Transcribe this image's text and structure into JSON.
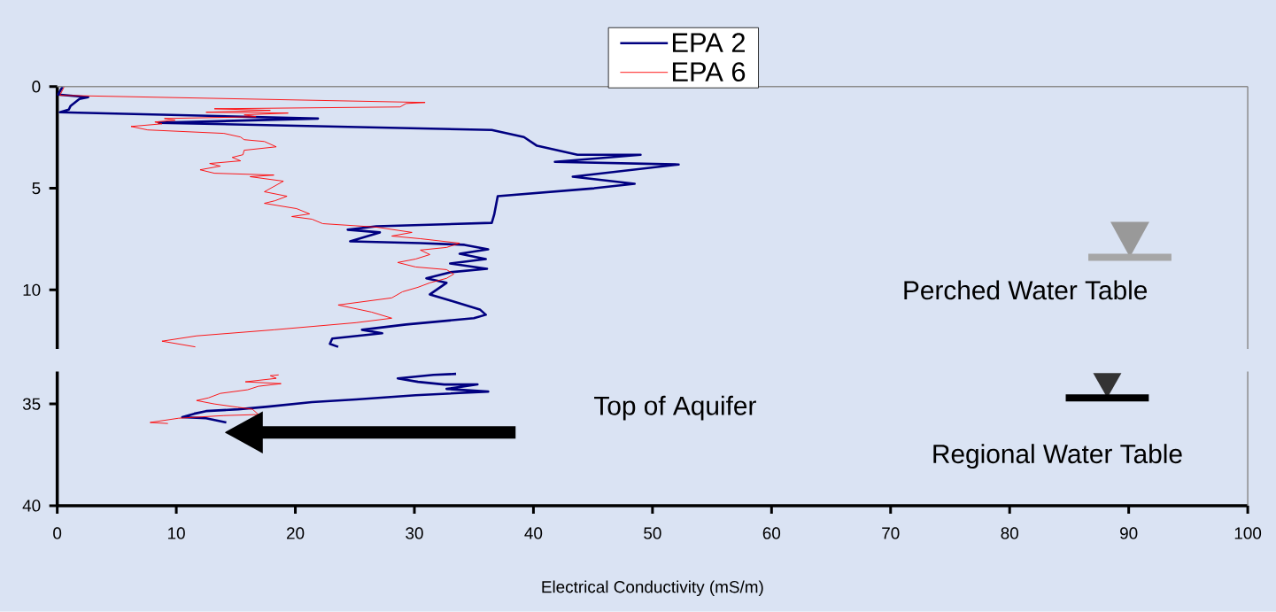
{
  "chart_data": [
    {
      "type": "line",
      "xlim": [
        0,
        100
      ],
      "xticks": [
        0,
        10,
        20,
        30,
        40,
        50,
        60,
        70,
        80,
        90,
        100
      ],
      "ylim": [
        12.9,
        0
      ],
      "yticks": [
        0,
        5,
        10
      ],
      "tick_labels": "y",
      "legend": "top",
      "marker": "none",
      "line_style": "solid",
      "grid": false,
      "series": [
        {
          "name": "EPA 2",
          "color": "#000080",
          "x": [
            0.45,
            0.07,
            2.6,
            1.86,
            1.11,
            0.97,
            0.22,
            21.9,
            8.54,
            36.5,
            39.2,
            40.3,
            43.7,
            49.0,
            41.8,
            52.2,
            43.3,
            48.5,
            45.1,
            37.0,
            36.7,
            36.5,
            26.8,
            24.4,
            27.1,
            24.6,
            30.5,
            34.2,
            36.2,
            33.8,
            36.0,
            33.0,
            36.1,
            33.0,
            31.0,
            32.7,
            31.3,
            33.0,
            35.5,
            36.0,
            35.0,
            29.3,
            25.6,
            27.3,
            23.1,
            22.9,
            23.6
          ],
          "values": [
            0,
            0.39,
            0.52,
            0.61,
            0.96,
            1.13,
            1.26,
            1.57,
            1.78,
            2.13,
            2.48,
            2.91,
            3.35,
            3.35,
            3.7,
            3.83,
            4.43,
            4.78,
            5.0,
            5.39,
            6.3,
            6.7,
            6.87,
            7.04,
            7.17,
            7.61,
            7.7,
            7.78,
            8.0,
            8.22,
            8.48,
            8.7,
            8.96,
            9.13,
            9.43,
            9.65,
            10.22,
            10.52,
            10.96,
            11.22,
            11.39,
            11.7,
            11.96,
            12.13,
            12.39,
            12.65,
            12.8
          ]
        },
        {
          "name": "EPA 6",
          "color": "#ff0000",
          "x": [
            0.59,
            0.22,
            30.9,
            29.3,
            28.8,
            13.2,
            17.9,
            12.5,
            19.4,
            15.7,
            16.7,
            9.0,
            9.9,
            8.2,
            8.8,
            6.2,
            7.6,
            14.0,
            15.4,
            15.7,
            17.4,
            18.4,
            15.7,
            15.6,
            14.7,
            15.4,
            12.8,
            13.7,
            12.0,
            13.2,
            18.2,
            16.2,
            19.0,
            17.4,
            19.3,
            18.3,
            17.4,
            20.1,
            21.2,
            19.7,
            21.4,
            22.3,
            26.8,
            29.8,
            28.1,
            30.5,
            33.8,
            32.7,
            30.5,
            31.3,
            30.1,
            28.6,
            30.1,
            32.7,
            33.3,
            32.7,
            31.3,
            30.3,
            29.0,
            28.1,
            23.6,
            26.4,
            28.1,
            25.1,
            18.2,
            11.7,
            8.8,
            11.6
          ],
          "values": [
            0,
            0.43,
            0.78,
            0.83,
            1.0,
            1.09,
            1.17,
            1.26,
            1.3,
            1.39,
            1.48,
            1.57,
            1.65,
            1.74,
            1.83,
            1.96,
            2.13,
            2.3,
            2.48,
            2.61,
            2.7,
            2.96,
            3.13,
            3.35,
            3.48,
            3.65,
            3.78,
            3.91,
            4.09,
            4.26,
            4.35,
            4.43,
            4.65,
            5.17,
            5.39,
            5.61,
            5.74,
            6.0,
            6.26,
            6.39,
            6.52,
            6.74,
            6.91,
            7.17,
            7.35,
            7.48,
            7.7,
            7.91,
            8.04,
            8.26,
            8.48,
            8.65,
            8.87,
            9.0,
            9.22,
            9.43,
            9.65,
            9.87,
            10.09,
            10.39,
            10.74,
            11.09,
            11.39,
            11.61,
            11.96,
            12.26,
            12.52,
            12.8
          ]
        }
      ],
      "annotations": [
        "Perched Water Table"
      ]
    },
    {
      "type": "line",
      "xlim": [
        0,
        100
      ],
      "xticks": [
        0,
        10,
        20,
        30,
        40,
        50,
        60,
        70,
        80,
        90,
        100
      ],
      "ylim": [
        40,
        33.4
      ],
      "yticks": [
        35,
        40
      ],
      "xlabel": "Electrical Conductivity (mS/m)",
      "marker": "none",
      "line_style": "solid",
      "grid": false,
      "series": [
        {
          "color": "#000080",
          "x": [
            33.5,
            31.6,
            28.6,
            30.3,
            32.5,
            35.3,
            32.7,
            36.2,
            30.1,
            25.1,
            21.4,
            17.7,
            15.2,
            12.5,
            11.5,
            10.5,
            12.5,
            14.2
          ],
          "values": [
            33.52,
            33.57,
            33.74,
            33.91,
            34.04,
            34.04,
            34.26,
            34.39,
            34.57,
            34.78,
            34.91,
            35.13,
            35.26,
            35.35,
            35.48,
            35.65,
            35.7,
            35.91
          ]
        },
        {
          "color": "#ff0000",
          "x": [
            18.6,
            17.9,
            18.4,
            15.8,
            18.8,
            16.9,
            16.0,
            13.7,
            12.7,
            11.7,
            13.2,
            16.4,
            16.9,
            14.0,
            10.2,
            7.8,
            9.3
          ],
          "values": [
            33.57,
            33.61,
            33.74,
            33.91,
            34.0,
            34.13,
            34.3,
            34.48,
            34.7,
            34.83,
            35.0,
            35.26,
            35.52,
            35.57,
            35.7,
            35.91,
            35.96
          ]
        }
      ],
      "annotations": [
        "Top of Aquifer",
        "Regional Water Table"
      ]
    }
  ]
}
